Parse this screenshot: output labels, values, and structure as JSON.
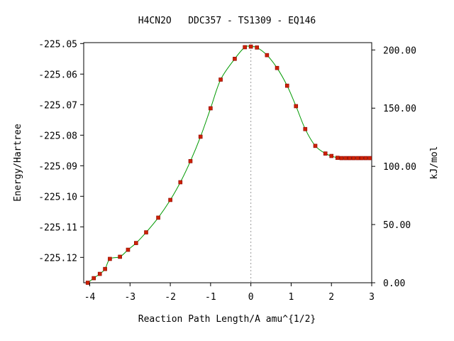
{
  "chart_data": {
    "type": "line",
    "title": "H4CN2O   DDC357 - TS1309 - EQ146",
    "xlabel": "Reaction Path Length/A amu^{1/2}",
    "ylabel": "Energy/Hartree",
    "y2label": "kJ/mol",
    "xlim": [
      -4.15,
      3.0
    ],
    "ylim": [
      -225.1283,
      -225.0497
    ],
    "y2lim": [
      0,
      206.3
    ],
    "grid": false,
    "x_ticks": [
      -4,
      -3,
      -2,
      -1,
      0,
      1,
      2,
      3
    ],
    "x_tick_labels": [
      "-4",
      "-3",
      "-2",
      "-1",
      "0",
      "1",
      "2",
      "3"
    ],
    "y_ticks": [
      -225.05,
      -225.06,
      -225.07,
      -225.08,
      -225.09,
      -225.1,
      -225.11,
      -225.12
    ],
    "y_tick_labels": [
      "-225.05",
      "-225.06",
      "-225.07",
      "-225.08",
      "-225.09",
      "-225.10",
      "-225.11",
      "-225.12"
    ],
    "y2_ticks": [
      0,
      50,
      100,
      150,
      200
    ],
    "y2_tick_labels": [
      "0.00",
      "50.00",
      "100.00",
      "150.00",
      "200.00"
    ],
    "ts_marker_x": 0.0,
    "colors": {
      "curve": "#009900",
      "marker": "#cc2200",
      "marker_edge": "#8b0000",
      "ts_line": "#999999",
      "axis": "#000000"
    },
    "series": [
      {
        "x": [
          -4.05,
          -3.9,
          -3.75,
          -3.62,
          -3.5,
          -3.25,
          -3.05,
          -2.85,
          -2.6,
          -2.3,
          -2.0,
          -1.75,
          -1.5,
          -1.25,
          -1.0,
          -0.75,
          -0.4,
          -0.15,
          0.0,
          0.15,
          0.4,
          0.65,
          0.9,
          1.12,
          1.35,
          1.6,
          1.85,
          2.0,
          2.15,
          2.25,
          2.35,
          2.45,
          2.55,
          2.65,
          2.75,
          2.85,
          2.95
        ],
        "y": [
          -225.1283,
          -225.1268,
          -225.1254,
          -225.1238,
          -225.1205,
          -225.1198,
          -225.1175,
          -225.1153,
          -225.1118,
          -225.107,
          -225.1012,
          -225.0954,
          -225.0885,
          -225.0805,
          -225.0712,
          -225.0618,
          -225.055,
          -225.0512,
          -225.051,
          -225.0513,
          -225.0538,
          -225.058,
          -225.0638,
          -225.0705,
          -225.078,
          -225.0835,
          -225.086,
          -225.0868,
          -225.0874,
          -225.0875,
          -225.0875,
          -225.0875,
          -225.0875,
          -225.0875,
          -225.0875,
          -225.0875,
          -225.0875
        ]
      }
    ]
  }
}
